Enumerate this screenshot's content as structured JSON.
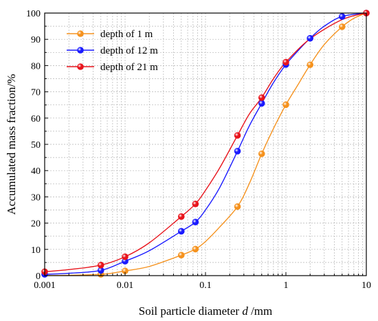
{
  "chart_data": {
    "type": "line",
    "xscale": "log",
    "xlim": [
      0.001,
      10
    ],
    "ylim": [
      0,
      100
    ],
    "x_ticks": [
      {
        "value": 0.001,
        "label": "0.001"
      },
      {
        "value": 0.01,
        "label": "0.01"
      },
      {
        "value": 0.1,
        "label": "0.1"
      },
      {
        "value": 1,
        "label": "1"
      },
      {
        "value": 10,
        "label": "10"
      }
    ],
    "y_ticks": [
      {
        "value": 0,
        "label": "0"
      },
      {
        "value": 10,
        "label": "10"
      },
      {
        "value": 20,
        "label": "20"
      },
      {
        "value": 30,
        "label": "30"
      },
      {
        "value": 40,
        "label": "40"
      },
      {
        "value": 50,
        "label": "50"
      },
      {
        "value": 60,
        "label": "60"
      },
      {
        "value": 70,
        "label": "70"
      },
      {
        "value": 80,
        "label": "80"
      },
      {
        "value": 90,
        "label": "90"
      },
      {
        "value": 100,
        "label": "100"
      }
    ],
    "ylabel": "Accumulated mass fraction/%",
    "xlabel_parts": [
      "Soil particle diameter ",
      "d",
      " /mm"
    ],
    "grid": true,
    "legend_position": "top-left",
    "series": [
      {
        "name": "depth of 1 m",
        "color": "#f5921e",
        "x": [
          0.005,
          0.01,
          0.05,
          0.075,
          0.25,
          0.5,
          1,
          2,
          5,
          10
        ],
        "y": [
          0.5,
          1.8,
          7.8,
          10.1,
          26.3,
          46.4,
          65.1,
          80.3,
          94.8,
          100
        ],
        "curve": [
          [
            0.001,
            0
          ],
          [
            0.005,
            0.5
          ],
          [
            0.01,
            1.8
          ],
          [
            0.02,
            3.5
          ],
          [
            0.05,
            7.8
          ],
          [
            0.075,
            10.1
          ],
          [
            0.1,
            13
          ],
          [
            0.15,
            18.5
          ],
          [
            0.25,
            26.3
          ],
          [
            0.35,
            35
          ],
          [
            0.5,
            46.4
          ],
          [
            0.7,
            56
          ],
          [
            1,
            65.1
          ],
          [
            1.4,
            72.5
          ],
          [
            2,
            80.3
          ],
          [
            3,
            88
          ],
          [
            5,
            94.8
          ],
          [
            7,
            98
          ],
          [
            10,
            100
          ]
        ]
      },
      {
        "name": "depth of 12 m",
        "color": "#1a1aff",
        "x": [
          0.001,
          0.005,
          0.01,
          0.05,
          0.075,
          0.25,
          0.5,
          1,
          2,
          5,
          10
        ],
        "y": [
          0.5,
          2.0,
          5.5,
          16.9,
          20.4,
          47.4,
          65.6,
          80.4,
          90.4,
          98.7,
          100
        ],
        "curve": [
          [
            0.001,
            0.5
          ],
          [
            0.002,
            0.9
          ],
          [
            0.005,
            2.0
          ],
          [
            0.01,
            5.5
          ],
          [
            0.02,
            9.5
          ],
          [
            0.05,
            16.9
          ],
          [
            0.075,
            20.4
          ],
          [
            0.1,
            25
          ],
          [
            0.15,
            33.5
          ],
          [
            0.25,
            47.4
          ],
          [
            0.35,
            57
          ],
          [
            0.5,
            65.6
          ],
          [
            0.7,
            73.5
          ],
          [
            1,
            80.4
          ],
          [
            1.4,
            85.5
          ],
          [
            2,
            90.4
          ],
          [
            3,
            95
          ],
          [
            5,
            98.7
          ],
          [
            10,
            100
          ]
        ]
      },
      {
        "name": "depth of 21 m",
        "color": "#e8141c",
        "x": [
          0.001,
          0.005,
          0.01,
          0.05,
          0.075,
          0.25,
          0.5,
          1,
          10
        ],
        "y": [
          1.5,
          4.0,
          7.2,
          22.5,
          27.3,
          53.4,
          67.8,
          81.3,
          100
        ],
        "curve": [
          [
            0.001,
            1.5
          ],
          [
            0.002,
            2.3
          ],
          [
            0.005,
            4.0
          ],
          [
            0.01,
            7.2
          ],
          [
            0.02,
            12.5
          ],
          [
            0.05,
            22.5
          ],
          [
            0.075,
            27.3
          ],
          [
            0.1,
            32.5
          ],
          [
            0.15,
            41
          ],
          [
            0.25,
            53.4
          ],
          [
            0.35,
            61.5
          ],
          [
            0.5,
            67.8
          ],
          [
            0.7,
            75
          ],
          [
            1,
            81.3
          ],
          [
            2,
            90.2
          ],
          [
            5,
            97.5
          ],
          [
            10,
            100
          ]
        ]
      }
    ]
  }
}
